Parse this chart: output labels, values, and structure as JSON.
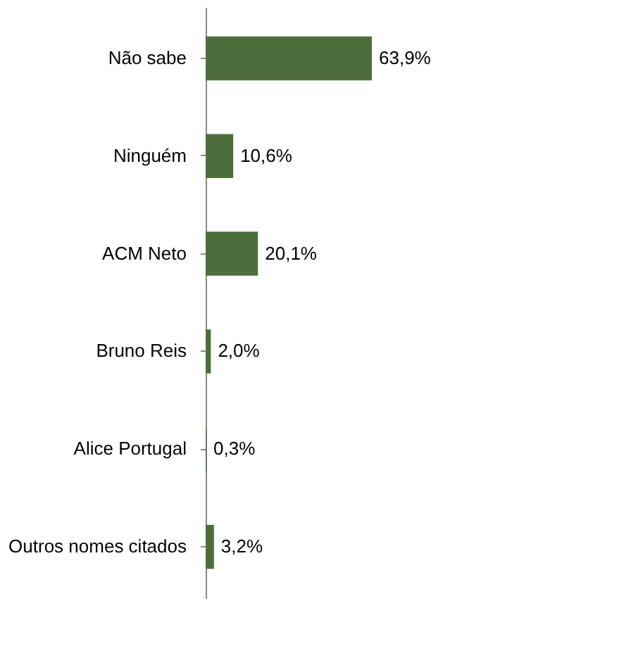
{
  "chart_data": {
    "type": "bar",
    "orientation": "horizontal",
    "categories": [
      "Não sabe",
      "Ninguém",
      "ACM Neto",
      "Bruno Reis",
      "Alice Portugal",
      "Outros nomes citados"
    ],
    "values": [
      63.9,
      10.6,
      20.1,
      2.0,
      0.3,
      3.2
    ],
    "value_labels": [
      "63,9%",
      "10,6%",
      "20,1%",
      "2,0%",
      "0,3%",
      "3,2%"
    ],
    "color": "#4d6e3c"
  }
}
